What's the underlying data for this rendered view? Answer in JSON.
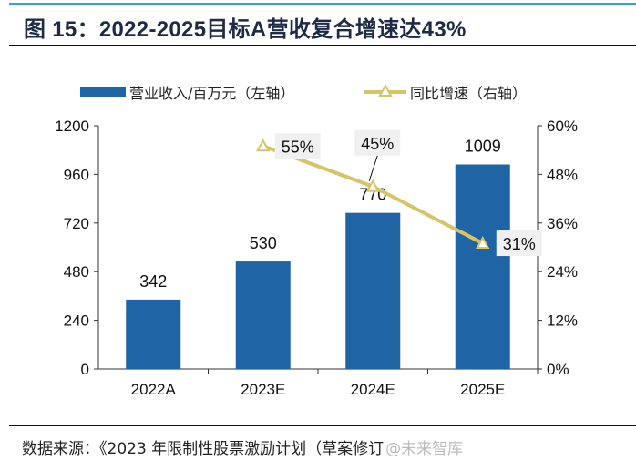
{
  "title": "图 15：2022-2025目标A营收复合增速达43%",
  "source": "数据来源：《2023 年限制性股票激励计划（草案修订",
  "watermark": "@未来智库",
  "colors": {
    "bar": "#1f65a6",
    "line": "#d6c46a",
    "title": "#1e2b45",
    "accent": "#3b9fd6"
  },
  "chart_data": {
    "type": "bar+line",
    "categories": [
      "2022A",
      "2023E",
      "2024E",
      "2025E"
    ],
    "series": [
      {
        "name": "营业收入/百万元（左轴）",
        "type": "bar",
        "axis": "left",
        "values": [
          342,
          530,
          770,
          1009
        ],
        "labels": [
          "342",
          "530",
          "770",
          "1009"
        ]
      },
      {
        "name": "同比增速（右轴）",
        "type": "line",
        "axis": "right",
        "marker": "triangle",
        "values": [
          null,
          55,
          45,
          31
        ],
        "labels": [
          "",
          "55%",
          "45%",
          "31%"
        ]
      }
    ],
    "left_axis": {
      "ylim": [
        0,
        1200
      ],
      "ticks": [
        "0",
        "240",
        "480",
        "720",
        "960",
        "1200"
      ]
    },
    "right_axis": {
      "ylim": [
        0,
        60
      ],
      "ticks": [
        "0%",
        "12%",
        "24%",
        "36%",
        "48%",
        "60%"
      ]
    },
    "legend": "top",
    "grid": false
  }
}
